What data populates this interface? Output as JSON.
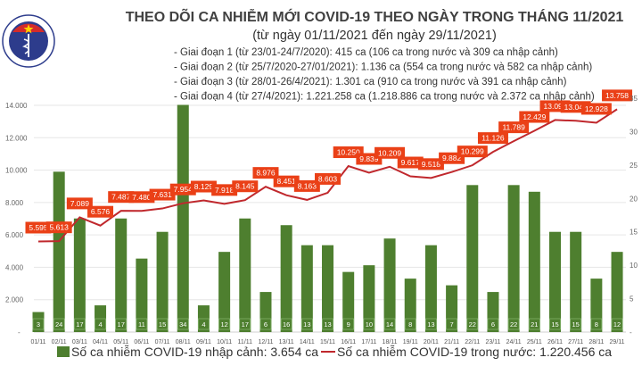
{
  "chart_data": {
    "type": "bar+line",
    "title": "THEO DÕI CA NHIỄM MỚI COVID-19 THEO NGÀY TRONG THÁNG 11/2021",
    "subtitle": "(từ ngày 01/11/2021 đến ngày 29/11/2021)",
    "notes": [
      "- Giai đoạn 1 (từ 23/01-24/7/2020): 415 ca (106 ca trong nước và 309 ca nhập cảnh)",
      "- Giai đoạn 2 (từ 25/7/2020-27/01/2021): 1.136 ca (554 ca trong nước và 582 ca nhập cảnh)",
      "- Giai đoạn 3 (từ 28/01-26/4/2021): 1.301 ca (910 ca trong nước và 391 ca nhập cảnh)",
      "- Giai đoạn 4 (từ 27/4/2021): 1.221.258 ca (1.218.886 ca trong nước và 2.372 ca nhập cảnh)"
    ],
    "categories": [
      "01/11",
      "02/11",
      "03/11",
      "04/11",
      "05/11",
      "06/11",
      "07/11",
      "08/11",
      "09/11",
      "10/11",
      "11/11",
      "12/11",
      "13/11",
      "14/11",
      "15/11",
      "16/11",
      "17/11",
      "18/11",
      "19/11",
      "20/11",
      "21/11",
      "22/11",
      "23/11",
      "24/11",
      "25/11",
      "26/11",
      "27/11",
      "28/11",
      "29/11"
    ],
    "series": [
      {
        "name": "Số ca nhiễm COVID-19 nhập cảnh: 3.654 ca",
        "type": "bar",
        "axis": "right",
        "color": "#4e7f2f",
        "values": [
          3,
          24,
          17,
          4,
          17,
          11,
          15,
          34,
          4,
          12,
          17,
          6,
          16,
          13,
          13,
          9,
          10,
          14,
          8,
          13,
          7,
          22,
          6,
          22,
          21,
          15,
          15,
          8,
          12
        ]
      },
      {
        "name": "Số ca nhiễm COVID-19 trong nước: 1.220.456 ca",
        "type": "line",
        "axis": "left",
        "color": "#c0282d",
        "label_color": "#ea4017",
        "values": [
          5595,
          5613,
          7089,
          6576,
          7487,
          7480,
          7631,
          7954,
          8129,
          7918,
          8145,
          8976,
          8451,
          8163,
          8603,
          10250,
          9839,
          10209,
          9617,
          9518,
          9882,
          10299,
          11126,
          11789,
          12429,
          13094,
          13046,
          12928,
          13758
        ]
      }
    ],
    "left_axis": {
      "ticks": [
        0,
        2000,
        4000,
        6000,
        8000,
        10000,
        12000,
        14000
      ],
      "tick_labels": [
        "-",
        "2.000",
        "4.000",
        "6.000",
        "8.000",
        "10.000",
        "12.000",
        "14.000"
      ]
    },
    "right_axis": {
      "ticks": [
        0,
        5,
        10,
        15,
        20,
        25,
        30,
        35
      ],
      "tick_labels": [
        "-",
        "5",
        "10",
        "15",
        "20",
        "25",
        "30",
        "35"
      ]
    },
    "grid": true,
    "legend": "bottom"
  },
  "logo": {
    "text": "BỘ Y TẾ",
    "bottom_text": "MINISTRY OF HEALTH"
  }
}
